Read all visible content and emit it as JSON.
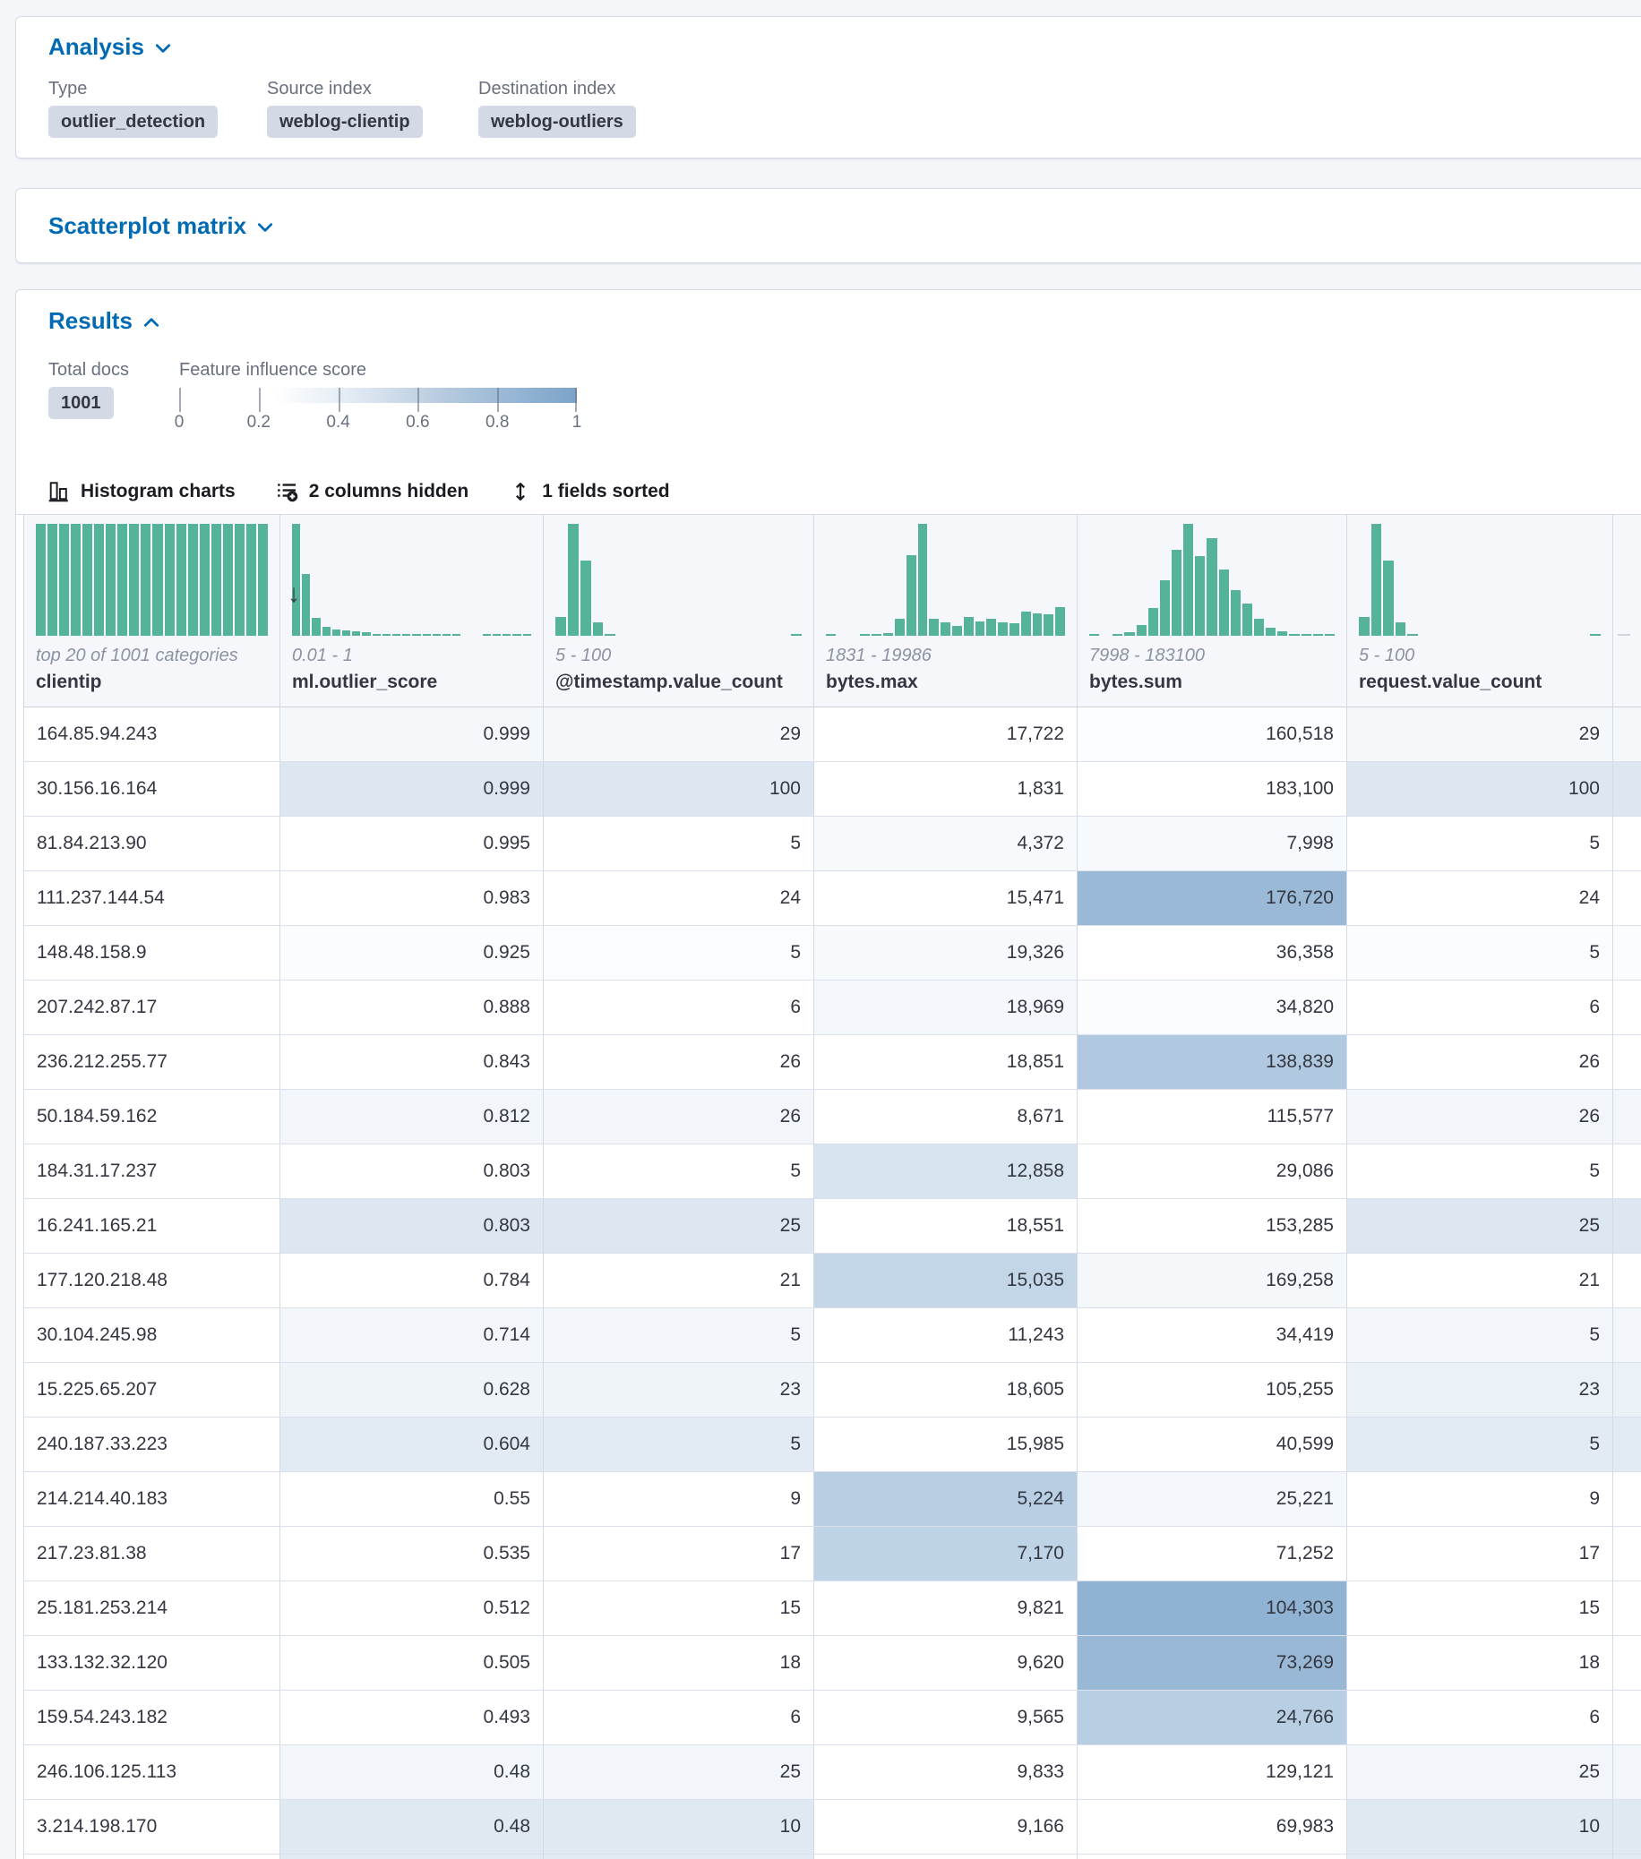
{
  "analysis": {
    "title": "Analysis",
    "fields": [
      {
        "label": "Type",
        "value": "outlier_detection"
      },
      {
        "label": "Source index",
        "value": "weblog-clientip"
      },
      {
        "label": "Destination index",
        "value": "weblog-outliers"
      }
    ]
  },
  "scatterplot": {
    "title": "Scatterplot matrix"
  },
  "results": {
    "title": "Results",
    "total_docs_label": "Total docs",
    "total_docs_value": "1001",
    "influence_label": "Feature influence score",
    "legend_ticks": [
      "0",
      "0.2",
      "0.4",
      "0.6",
      "0.8",
      "1"
    ],
    "toolbar": [
      {
        "id": "histogram-charts",
        "label": "Histogram charts"
      },
      {
        "id": "columns-hidden",
        "label": "2 columns hidden"
      },
      {
        "id": "fields-sorted",
        "label": "1 fields sorted"
      }
    ]
  },
  "colors": {
    "histogram_green": "#54B399",
    "heat_blue": "#6092C0",
    "link_blue": "#006BB4",
    "badge_bg": "#d3dae6"
  },
  "grid": {
    "columns": [
      {
        "name": "clientip",
        "range": "top 20 of 1001 categories",
        "align": "left",
        "sorted": "",
        "hist": [
          100,
          100,
          100,
          100,
          100,
          100,
          100,
          100,
          100,
          100,
          100,
          100,
          100,
          100,
          100,
          100,
          100,
          100,
          100,
          100
        ]
      },
      {
        "name": "ml.outlier_score",
        "range": "0.01 - 1",
        "align": "right",
        "sorted": "desc",
        "hist": [
          100,
          55,
          16,
          8,
          6,
          5,
          4,
          3,
          2,
          1.2,
          1,
          2,
          1.5,
          1,
          0.8,
          0.8,
          0.6,
          0,
          0,
          0.6,
          1.5,
          1.2,
          1,
          0.8
        ]
      },
      {
        "name": "@timestamp.value_count",
        "range": "5 - 100",
        "align": "right",
        "sorted": "",
        "hist": [
          17,
          100,
          67,
          12,
          2,
          0,
          0,
          0,
          0,
          0,
          0,
          0,
          0,
          0,
          0,
          0,
          0,
          0,
          0,
          1
        ]
      },
      {
        "name": "bytes.max",
        "range": "1831 - 19986",
        "align": "right",
        "sorted": "",
        "hist": [
          1,
          0,
          0,
          1,
          1.5,
          2.5,
          15,
          72,
          100,
          15,
          12,
          9,
          17,
          13,
          15,
          12,
          11,
          22,
          20,
          19,
          26
        ]
      },
      {
        "name": "bytes.sum",
        "range": "7998 - 183100",
        "align": "right",
        "sorted": "",
        "hist": [
          1,
          0,
          1.5,
          3,
          10,
          25,
          50,
          77,
          100,
          71,
          87,
          59,
          41,
          29,
          15,
          7,
          4,
          2,
          1,
          1,
          2
        ]
      },
      {
        "name": "request.value_count",
        "range": "5 - 100",
        "align": "right",
        "sorted": "",
        "hist": [
          17,
          100,
          67,
          12,
          2,
          0,
          0,
          0,
          0,
          0,
          0,
          0,
          0,
          0,
          0,
          0,
          0,
          0,
          0,
          1
        ]
      }
    ],
    "rows": [
      {
        "values": [
          "164.85.94.243",
          "0.999",
          "29",
          "17,722",
          "160,518",
          "29"
        ],
        "shades": [
          0,
          0.06,
          0.06,
          0,
          0.02,
          0.06
        ]
      },
      {
        "values": [
          "30.156.16.164",
          "0.999",
          "100",
          "1,831",
          "183,100",
          "100"
        ],
        "shades": [
          0,
          0.22,
          0.22,
          0,
          0,
          0.22
        ]
      },
      {
        "values": [
          "81.84.213.90",
          "0.995",
          "5",
          "4,372",
          "7,998",
          "5"
        ],
        "shades": [
          0,
          0,
          0,
          0.05,
          0.05,
          0
        ]
      },
      {
        "values": [
          "111.237.144.54",
          "0.983",
          "24",
          "15,471",
          "176,720",
          "24"
        ],
        "shades": [
          0,
          0,
          0,
          0,
          0.64,
          0
        ]
      },
      {
        "values": [
          "148.48.158.9",
          "0.925",
          "5",
          "19,326",
          "36,358",
          "5"
        ],
        "shades": [
          0,
          0.03,
          0.02,
          0.05,
          0,
          0.03
        ]
      },
      {
        "values": [
          "207.242.87.17",
          "0.888",
          "6",
          "18,969",
          "34,820",
          "6"
        ],
        "shades": [
          0,
          0,
          0,
          0.07,
          0.03,
          0
        ]
      },
      {
        "values": [
          "236.212.255.77",
          "0.843",
          "26",
          "18,851",
          "138,839",
          "26"
        ],
        "shades": [
          0,
          0,
          0,
          0,
          0.5,
          0
        ]
      },
      {
        "values": [
          "50.184.59.162",
          "0.812",
          "26",
          "8,671",
          "115,577",
          "26"
        ],
        "shades": [
          0,
          0.08,
          0.08,
          0,
          0,
          0.08
        ]
      },
      {
        "values": [
          "184.31.17.237",
          "0.803",
          "5",
          "12,858",
          "29,086",
          "5"
        ],
        "shades": [
          0,
          0,
          0,
          0.25,
          0,
          0
        ]
      },
      {
        "values": [
          "16.241.165.21",
          "0.803",
          "25",
          "18,551",
          "153,285",
          "25"
        ],
        "shades": [
          0,
          0.22,
          0.22,
          0,
          0,
          0.22
        ]
      },
      {
        "values": [
          "177.120.218.48",
          "0.784",
          "21",
          "15,035",
          "169,258",
          "21"
        ],
        "shades": [
          0,
          0,
          0,
          0.38,
          0.06,
          0
        ]
      },
      {
        "values": [
          "30.104.245.98",
          "0.714",
          "5",
          "11,243",
          "34,419",
          "5"
        ],
        "shades": [
          0,
          0.08,
          0.08,
          0,
          0,
          0.08
        ]
      },
      {
        "values": [
          "15.225.65.207",
          "0.628",
          "23",
          "18,605",
          "105,255",
          "23"
        ],
        "shades": [
          0,
          0.1,
          0.1,
          0,
          0,
          0.13
        ]
      },
      {
        "values": [
          "240.187.33.223",
          "0.604",
          "5",
          "15,985",
          "40,599",
          "5"
        ],
        "shades": [
          0,
          0.18,
          0.18,
          0,
          0,
          0.18
        ]
      },
      {
        "values": [
          "214.214.40.183",
          "0.55",
          "9",
          "5,224",
          "25,221",
          "9"
        ],
        "shades": [
          0,
          0,
          0,
          0.45,
          0.07,
          0
        ]
      },
      {
        "values": [
          "217.23.81.38",
          "0.535",
          "17",
          "7,170",
          "71,252",
          "17"
        ],
        "shades": [
          0,
          0,
          0,
          0.4,
          0,
          0
        ]
      },
      {
        "values": [
          "25.181.253.214",
          "0.512",
          "15",
          "9,821",
          "104,303",
          "15"
        ],
        "shades": [
          0,
          0,
          0,
          0,
          0.7,
          0
        ]
      },
      {
        "values": [
          "133.132.32.120",
          "0.505",
          "18",
          "9,620",
          "73,269",
          "18"
        ],
        "shades": [
          0,
          0,
          0,
          0,
          0.65,
          0
        ]
      },
      {
        "values": [
          "159.54.243.182",
          "0.493",
          "6",
          "9,565",
          "24,766",
          "6"
        ],
        "shades": [
          0,
          0,
          0,
          0,
          0.45,
          0
        ]
      },
      {
        "values": [
          "246.106.125.113",
          "0.48",
          "25",
          "9,833",
          "129,121",
          "25"
        ],
        "shades": [
          0,
          0.08,
          0.08,
          0,
          0,
          0.08
        ]
      },
      {
        "values": [
          "3.214.198.170",
          "0.48",
          "10",
          "9,166",
          "69,983",
          "10"
        ],
        "shades": [
          0,
          0.2,
          0.2,
          0,
          0,
          0.2
        ]
      }
    ],
    "partial_row": {
      "values": [
        "",
        "",
        "",
        "",
        "",
        ""
      ],
      "shades": [
        0,
        0.18,
        0.18,
        0,
        0,
        0.18
      ]
    }
  }
}
